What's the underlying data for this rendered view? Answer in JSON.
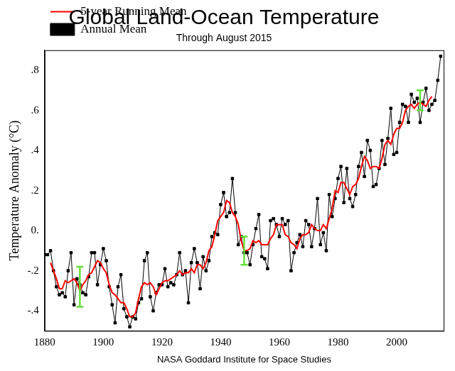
{
  "chart_data": {
    "type": "line",
    "title": "Global Land-Ocean Temperature",
    "subtitle": "Through August 2015",
    "x_label": "NASA Goddard Institute for Space Studies",
    "y_label": "Temperature Anomaly (°C)",
    "x": [
      1880,
      1881,
      1882,
      1883,
      1884,
      1885,
      1886,
      1887,
      1888,
      1889,
      1890,
      1891,
      1892,
      1893,
      1894,
      1895,
      1896,
      1897,
      1898,
      1899,
      1900,
      1901,
      1902,
      1903,
      1904,
      1905,
      1906,
      1907,
      1908,
      1909,
      1910,
      1911,
      1912,
      1913,
      1914,
      1915,
      1916,
      1917,
      1918,
      1919,
      1920,
      1921,
      1922,
      1923,
      1924,
      1925,
      1926,
      1927,
      1928,
      1929,
      1930,
      1931,
      1932,
      1933,
      1934,
      1935,
      1936,
      1937,
      1938,
      1939,
      1940,
      1941,
      1942,
      1943,
      1944,
      1945,
      1946,
      1947,
      1948,
      1949,
      1950,
      1951,
      1952,
      1953,
      1954,
      1955,
      1956,
      1957,
      1958,
      1959,
      1960,
      1961,
      1962,
      1963,
      1964,
      1965,
      1966,
      1967,
      1968,
      1969,
      1970,
      1971,
      1972,
      1973,
      1974,
      1975,
      1976,
      1977,
      1978,
      1979,
      1980,
      1981,
      1982,
      1983,
      1984,
      1985,
      1986,
      1987,
      1988,
      1989,
      1990,
      1991,
      1992,
      1993,
      1994,
      1995,
      1996,
      1997,
      1998,
      1999,
      2000,
      2001,
      2002,
      2003,
      2004,
      2005,
      2006,
      2007,
      2008,
      2009,
      2010,
      2011,
      2012,
      2013,
      2014,
      2015
    ],
    "series": [
      {
        "name": "Annual Mean",
        "color": "#000000",
        "marker": "square",
        "values": [
          -0.12,
          -0.12,
          -0.1,
          -0.2,
          -0.28,
          -0.32,
          -0.31,
          -0.33,
          -0.2,
          -0.11,
          -0.37,
          -0.24,
          -0.27,
          -0.31,
          -0.32,
          -0.23,
          -0.11,
          -0.11,
          -0.27,
          -0.17,
          -0.09,
          -0.15,
          -0.28,
          -0.37,
          -0.46,
          -0.28,
          -0.22,
          -0.39,
          -0.43,
          -0.48,
          -0.43,
          -0.44,
          -0.36,
          -0.34,
          -0.15,
          -0.11,
          -0.33,
          -0.4,
          -0.31,
          -0.27,
          -0.27,
          -0.19,
          -0.28,
          -0.26,
          -0.27,
          -0.22,
          -0.11,
          -0.22,
          -0.2,
          -0.36,
          -0.16,
          -0.09,
          -0.16,
          -0.29,
          -0.13,
          -0.2,
          -0.15,
          -0.03,
          -0.01,
          -0.02,
          0.13,
          0.19,
          0.07,
          0.09,
          0.26,
          0.09,
          -0.07,
          -0.03,
          -0.11,
          -0.11,
          -0.17,
          -0.07,
          0.01,
          0.08,
          -0.13,
          -0.14,
          -0.19,
          0.05,
          0.06,
          0.03,
          -0.03,
          0.06,
          0.03,
          0.05,
          -0.2,
          -0.11,
          -0.06,
          -0.02,
          -0.08,
          0.05,
          0.03,
          -0.08,
          0.01,
          0.16,
          -0.07,
          -0.01,
          -0.1,
          0.18,
          0.07,
          0.16,
          0.26,
          0.32,
          0.14,
          0.31,
          0.16,
          0.12,
          0.18,
          0.32,
          0.39,
          0.27,
          0.45,
          0.4,
          0.22,
          0.23,
          0.31,
          0.45,
          0.33,
          0.46,
          0.61,
          0.38,
          0.39,
          0.54,
          0.63,
          0.62,
          0.54,
          0.68,
          0.64,
          0.66,
          0.54,
          0.64,
          0.71,
          0.6,
          0.63,
          0.65,
          0.75,
          0.87
        ]
      },
      {
        "name": "5-year Running Mean",
        "color": "#ff0000",
        "marker": "none",
        "values": [
          null,
          null,
          -0.16,
          -0.2,
          -0.24,
          -0.29,
          -0.29,
          -0.25,
          -0.26,
          -0.25,
          -0.24,
          -0.26,
          -0.3,
          -0.27,
          -0.25,
          -0.22,
          -0.21,
          -0.18,
          -0.15,
          -0.16,
          -0.19,
          -0.21,
          -0.27,
          -0.31,
          -0.32,
          -0.34,
          -0.36,
          -0.36,
          -0.39,
          -0.43,
          -0.43,
          -0.41,
          -0.34,
          -0.28,
          -0.26,
          -0.27,
          -0.26,
          -0.28,
          -0.32,
          -0.29,
          -0.26,
          -0.25,
          -0.25,
          -0.24,
          -0.23,
          -0.22,
          -0.2,
          -0.22,
          -0.21,
          -0.21,
          -0.19,
          -0.21,
          -0.17,
          -0.17,
          -0.19,
          -0.16,
          -0.1,
          -0.08,
          -0.02,
          0.05,
          0.07,
          0.09,
          0.15,
          0.14,
          0.09,
          0.07,
          0.03,
          -0.05,
          -0.1,
          -0.1,
          -0.09,
          -0.05,
          -0.06,
          -0.05,
          -0.07,
          -0.07,
          -0.07,
          -0.04,
          -0.02,
          0.03,
          0.03,
          0.03,
          -0.02,
          -0.03,
          -0.06,
          -0.07,
          -0.09,
          -0.04,
          -0.02,
          -0.02,
          -0.01,
          0.03,
          0.01,
          0.0,
          0.0,
          0.03,
          0.01,
          0.06,
          0.11,
          0.2,
          0.19,
          0.24,
          0.24,
          0.21,
          0.18,
          0.22,
          0.23,
          0.26,
          0.32,
          0.37,
          0.35,
          0.31,
          0.32,
          0.32,
          0.31,
          0.36,
          0.43,
          0.45,
          0.43,
          0.48,
          0.51,
          0.51,
          0.54,
          0.6,
          0.62,
          0.63,
          0.61,
          0.63,
          0.64,
          0.63,
          0.62,
          0.65,
          0.67,
          null,
          null,
          null
        ]
      }
    ],
    "error_bars": [
      {
        "x": 1892,
        "low": -0.38,
        "high": -0.18
      },
      {
        "x": 1948,
        "low": -0.17,
        "high": -0.03
      },
      {
        "x": 2008,
        "low": 0.6,
        "high": 0.7
      }
    ],
    "xlim": [
      1880,
      2016
    ],
    "xticks": [
      1880,
      1900,
      1920,
      1940,
      1960,
      1980,
      2000
    ],
    "ylim": [
      -0.5,
      0.9
    ],
    "yticks": [
      {
        "value": -0.4,
        "label": "-.4"
      },
      {
        "value": -0.2,
        "label": "-.2"
      },
      {
        "value": 0,
        "label": "0."
      },
      {
        "value": 0.2,
        "label": ".2"
      },
      {
        "value": 0.4,
        "label": ".4"
      },
      {
        "value": 0.6,
        "label": ".6"
      },
      {
        "value": 0.8,
        "label": ".8"
      }
    ],
    "grid": false,
    "legend": "upper left"
  }
}
